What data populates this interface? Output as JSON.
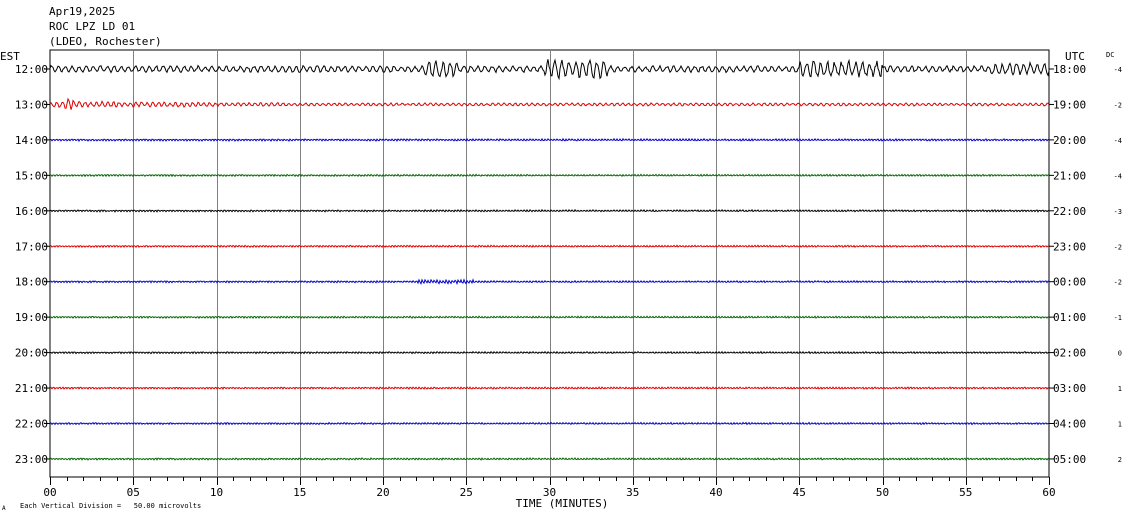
{
  "header": {
    "date": "Apr19,2025",
    "station": "ROC LPZ LD 01",
    "network": "(LDEO, Rochester)"
  },
  "labels": {
    "left_zone": "EST",
    "right_zone": "UTC",
    "dc_header": "DC",
    "x_axis": "TIME (MINUTES)",
    "footer": "Each Vertical Division =   50.00 microvolts",
    "footer_mark": "A"
  },
  "chart_data": {
    "type": "line",
    "title": "",
    "xlabel": "TIME (MINUTES)",
    "xlim": [
      0,
      60
    ],
    "x_ticks": [
      0,
      5,
      10,
      15,
      20,
      25,
      30,
      35,
      40,
      45,
      50,
      55,
      60
    ],
    "x_tick_labels": [
      "00",
      "05",
      "10",
      "15",
      "20",
      "25",
      "30",
      "35",
      "40",
      "45",
      "50",
      "55",
      "60"
    ],
    "grid": true,
    "vertical_division_microvolts": 50.0,
    "trace_colors": [
      "#000000",
      "#dd0000",
      "#0000cc",
      "#006600"
    ],
    "rows": [
      {
        "est": "12:00",
        "utc": "18:00",
        "dc": "-4",
        "color": "#000000"
      },
      {
        "est": "13:00",
        "utc": "19:00",
        "dc": "-2",
        "color": "#dd0000"
      },
      {
        "est": "14:00",
        "utc": "20:00",
        "dc": "-4",
        "color": "#0000cc"
      },
      {
        "est": "15:00",
        "utc": "21:00",
        "dc": "-4",
        "color": "#006600"
      },
      {
        "est": "16:00",
        "utc": "22:00",
        "dc": "-3",
        "color": "#000000"
      },
      {
        "est": "17:00",
        "utc": "23:00",
        "dc": "-2",
        "color": "#dd0000"
      },
      {
        "est": "18:00",
        "utc": "00:00",
        "dc": "-2",
        "color": "#0000cc"
      },
      {
        "est": "19:00",
        "utc": "01:00",
        "dc": "-1",
        "color": "#006600"
      },
      {
        "est": "20:00",
        "utc": "02:00",
        "dc": "0",
        "color": "#000000"
      },
      {
        "est": "21:00",
        "utc": "03:00",
        "dc": "1",
        "color": "#dd0000"
      },
      {
        "est": "22:00",
        "utc": "04:00",
        "dc": "1",
        "color": "#0000cc"
      },
      {
        "est": "23:00",
        "utc": "05:00",
        "dc": "2",
        "color": "#006600"
      }
    ]
  }
}
